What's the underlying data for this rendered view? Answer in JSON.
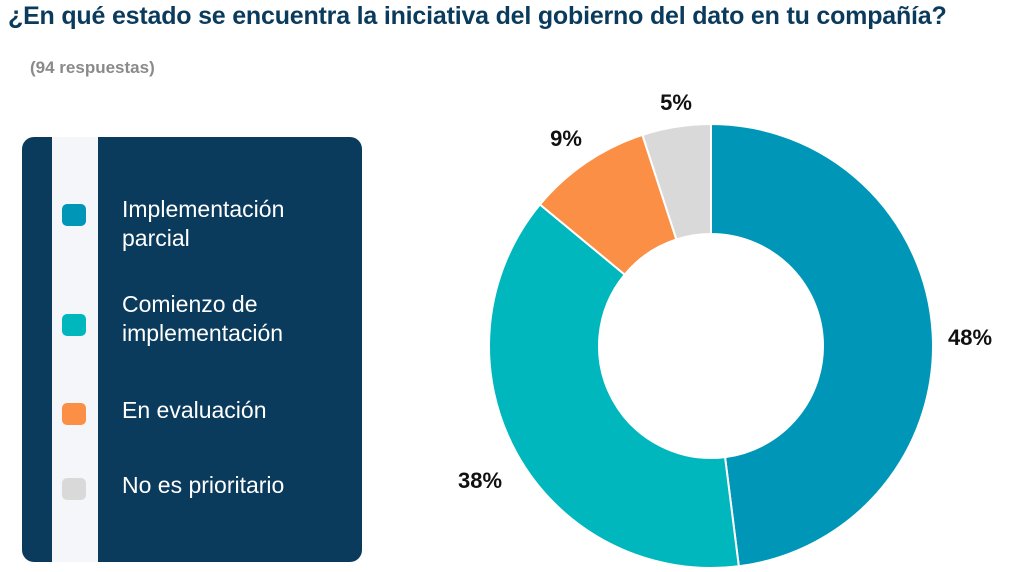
{
  "title": "¿En qué estado se encuentra la iniciativa del gobierno del dato en tu compañía?",
  "subtitle": "(94 respuestas)",
  "chart_data": {
    "type": "pie",
    "categories": [
      "Implementación parcial",
      "Comienzo de implementación",
      "En evaluación",
      "No es prioritario"
    ],
    "values": [
      48,
      38,
      9,
      5
    ],
    "labels": [
      "48%",
      "38%",
      "9%",
      "5%"
    ],
    "colors": [
      "#0096b8",
      "#00b7be",
      "#fb8f45",
      "#d9d9d9"
    ],
    "legend_placement": "left"
  }
}
